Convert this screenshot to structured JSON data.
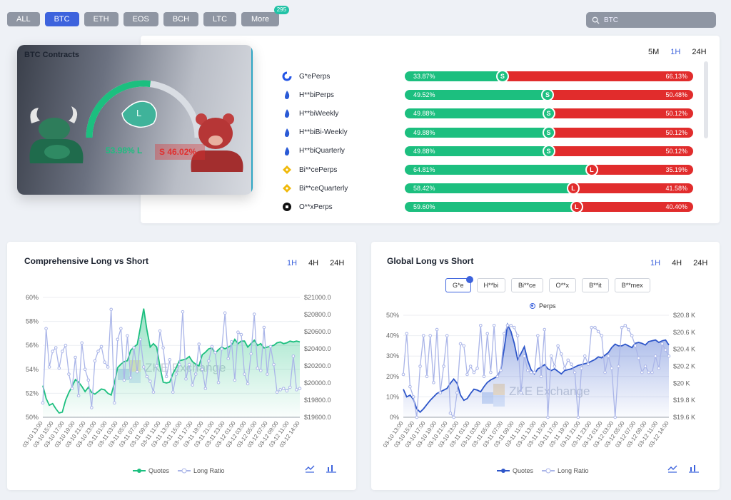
{
  "coin_tabs": [
    {
      "label": "ALL",
      "active": false
    },
    {
      "label": "BTC",
      "active": true
    },
    {
      "label": "ETH",
      "active": false
    },
    {
      "label": "EOS",
      "active": false
    },
    {
      "label": "BCH",
      "active": false
    },
    {
      "label": "LTC",
      "active": false
    },
    {
      "label": "More",
      "active": false,
      "badge": "295"
    }
  ],
  "search": {
    "value": "BTC",
    "placeholder": "BTC"
  },
  "contracts": {
    "title": "BTC Contracts",
    "long_label": "53.98%  L",
    "short_label": "S  46.02%",
    "gauge_letter": "L",
    "long_ratio": 53.98,
    "periods": [
      "5M",
      "1H",
      "24H"
    ],
    "active_period": "1H",
    "rows": [
      {
        "name": "G*eP​erps",
        "long": "33.87%",
        "short": "66.13%",
        "long_value": 33.87,
        "side": "S",
        "icon": "gate-icon",
        "icon_color": "#2354e6"
      },
      {
        "name": "H**biPerps",
        "long": "49.52%",
        "short": "50.48%",
        "long_value": 49.52,
        "side": "S",
        "icon": "huobi-icon",
        "icon_color": "#2a5ad6"
      },
      {
        "name": "H**biWeekly",
        "long": "49.88%",
        "short": "50.12%",
        "long_value": 49.88,
        "side": "S",
        "icon": "huobi-icon",
        "icon_color": "#2a5ad6"
      },
      {
        "name": "H**biBi-Weekly",
        "long": "49.88%",
        "short": "50.12%",
        "long_value": 49.88,
        "side": "S",
        "icon": "huobi-icon",
        "icon_color": "#2a5ad6"
      },
      {
        "name": "H**biQuarterly",
        "long": "49.88%",
        "short": "50.12%",
        "long_value": 49.88,
        "side": "S",
        "icon": "huobi-icon",
        "icon_color": "#2a5ad6"
      },
      {
        "name": "Bi**cePerps",
        "long": "64.81%",
        "short": "35.19%",
        "long_value": 64.81,
        "side": "L",
        "icon": "binance-icon",
        "icon_color": "#f0b90b"
      },
      {
        "name": "Bi**ceQuarterly",
        "long": "58.42%",
        "short": "41.58%",
        "long_value": 58.42,
        "side": "L",
        "icon": "binance-icon",
        "icon_color": "#f0b90b"
      },
      {
        "name": "O**xPerps",
        "long": "59.60%",
        "short": "40.40%",
        "long_value": 59.6,
        "side": "L",
        "icon": "okx-icon",
        "icon_color": "#111111"
      }
    ]
  },
  "comprehensive": {
    "title": "Comprehensive Long vs Short",
    "periods": [
      "1H",
      "4H",
      "24H"
    ],
    "active_period": "1H",
    "legend": [
      "Quotes",
      "Long Ratio"
    ],
    "watermark": "ZKE Exchange"
  },
  "global": {
    "title": "Global Long vs Short",
    "periods": [
      "1H",
      "4H",
      "24H"
    ],
    "active_period": "1H",
    "exchanges": [
      "G*e",
      "H**bi",
      "Bi**ce",
      "O**x",
      "B**it",
      "B**mex"
    ],
    "active_exchange": "G*e",
    "radio": "Perps",
    "legend": [
      "Quotes",
      "Long Ratio"
    ],
    "watermark": "ZKE Exchange"
  },
  "x_labels": [
    "03-10 13:00",
    "03-10 15:00",
    "03-10 17:00",
    "03-10 19:00",
    "03-10 21:00",
    "03-10 23:00",
    "03-11 01:00",
    "03-11 03:00",
    "03-11 05:00",
    "03-11 07:00",
    "03-11 09:00",
    "03-11 11:00",
    "03-11 13:00",
    "03-11 15:00",
    "03-11 17:00",
    "03-11 19:00",
    "03-11 21:00",
    "03-11 23:00",
    "03-12 01:00",
    "03-12 03:00",
    "03-12 05:00",
    "03-12 07:00",
    "03-12 09:00",
    "03-12 11:00",
    "03-12 14:00"
  ],
  "chart_data": [
    {
      "type": "line",
      "title": "Comprehensive Long vs Short",
      "y_left_ticks": [
        "60%",
        "58%",
        "56%",
        "54%",
        "52%",
        "50%"
      ],
      "y_left_range": [
        50,
        60
      ],
      "y_right_ticks": [
        "$21000.0",
        "$20800.0",
        "$20600.0",
        "$20400.0",
        "$20200.0",
        "$20000.0",
        "$19800.0",
        "$19600.0"
      ],
      "y_right_range": [
        19600,
        21000
      ],
      "series": [
        {
          "name": "Quotes",
          "axis": "right",
          "color": "#1cbf7f",
          "values": [
            19970,
            19820,
            19740,
            19760,
            19700,
            19650,
            19660,
            19800,
            19890,
            19960,
            20040,
            20010,
            19960,
            19900,
            19950,
            19890,
            19870,
            19900,
            19930,
            19920,
            19880,
            19860,
            20000,
            20180,
            20220,
            20250,
            20260,
            20380,
            20420,
            20450,
            20650,
            20870,
            20620,
            20420,
            20460,
            20420,
            20190,
            20010,
            20000,
            20010,
            20110,
            20180,
            20260,
            20270,
            20280,
            20310,
            20250,
            20220,
            20200,
            20330,
            20360,
            20400,
            20410,
            20350,
            20390,
            20420,
            20400,
            20420,
            20440,
            20510,
            20460,
            20490,
            20490,
            20420,
            20460,
            20500,
            20440,
            20460,
            20410,
            20420,
            20430,
            20440,
            20470,
            20480,
            20460,
            20470,
            20490,
            20480,
            20490,
            20480
          ]
        },
        {
          "name": "Long Ratio",
          "axis": "left",
          "color": "#aab5e8",
          "values": [
            51.2,
            57.4,
            54.2,
            55.5,
            55.8,
            54.1,
            55.5,
            56.0,
            53.6,
            52.4,
            55.0,
            51.8,
            56.2,
            54.0,
            53.1,
            50.8,
            54.7,
            55.5,
            55.9,
            54.6,
            54.2,
            59.0,
            51.2,
            56.5,
            57.4,
            53.1,
            56.8,
            53.3,
            55.8,
            53.8,
            56.5,
            54.2,
            53.4,
            53.0,
            52.1,
            54.3,
            57.2,
            55.8,
            53.4,
            54.8,
            52.1,
            53.6,
            54.4,
            58.8,
            53.2,
            54.4,
            52.7,
            53.6,
            56.1,
            54.0,
            52.4,
            54.7,
            55.9,
            55.4,
            52.9,
            55.7,
            58.7,
            54.9,
            56.3,
            53.1,
            57.1,
            56.9,
            53.6,
            52.8,
            55.3,
            58.6,
            54.1,
            53.9,
            57.5,
            53.6,
            55.9,
            54.4,
            52.1,
            52.3,
            52.4,
            52.2,
            52.5,
            55.1,
            52.3,
            52.4
          ]
        }
      ]
    },
    {
      "type": "line",
      "title": "Global Long vs Short",
      "y_left_ticks": [
        "50%",
        "40%",
        "30%",
        "20%",
        "10%",
        "0%"
      ],
      "y_left_range": [
        0,
        50
      ],
      "y_right_ticks": [
        "$20.8 K",
        "$20.6 K",
        "$20.4 K",
        "$20.2 K",
        "$20 K",
        "$19.8 K",
        "$19.6 K"
      ],
      "y_right_range": [
        19600,
        20800
      ],
      "series": [
        {
          "name": "Quotes",
          "axis": "right",
          "color": "#2e56c9",
          "values": [
            19930,
            19840,
            19860,
            19810,
            19700,
            19660,
            19700,
            19750,
            19800,
            19840,
            19880,
            19900,
            19920,
            19940,
            20000,
            20050,
            20000,
            19860,
            19800,
            19820,
            19880,
            19930,
            19920,
            19900,
            19960,
            20010,
            20040,
            20060,
            20080,
            20160,
            20410,
            20690,
            20610,
            20470,
            20280,
            20350,
            20430,
            20270,
            20160,
            20110,
            20170,
            20190,
            20220,
            20170,
            20150,
            20170,
            20140,
            20110,
            20150,
            20160,
            20170,
            20190,
            20210,
            20220,
            20230,
            20240,
            20260,
            20280,
            20310,
            20300,
            20330,
            20360,
            20420,
            20460,
            20440,
            20440,
            20460,
            20440,
            20420,
            20470,
            20480,
            20470,
            20450,
            20490,
            20500,
            20510,
            20480,
            20500,
            20510,
            20450
          ]
        },
        {
          "name": "Long Ratio",
          "axis": "left",
          "color": "#aab5e8",
          "values": [
            21,
            41,
            15,
            10,
            0,
            25,
            40,
            20,
            40,
            17,
            43,
            12,
            25,
            40,
            2,
            0,
            12,
            36,
            35,
            21,
            25,
            22,
            24,
            45,
            20,
            41,
            22,
            45,
            20,
            23,
            41,
            45,
            45,
            44,
            40,
            12,
            30,
            23,
            22,
            22,
            40,
            20,
            43,
            0,
            30,
            25,
            35,
            31,
            24,
            28,
            26,
            22,
            0,
            24,
            30,
            26,
            44,
            44,
            42,
            40,
            22,
            30,
            24,
            0,
            25,
            44,
            45,
            43,
            40,
            35,
            29,
            22,
            25,
            22,
            22,
            30,
            24,
            36,
            33,
            30
          ]
        }
      ]
    }
  ]
}
